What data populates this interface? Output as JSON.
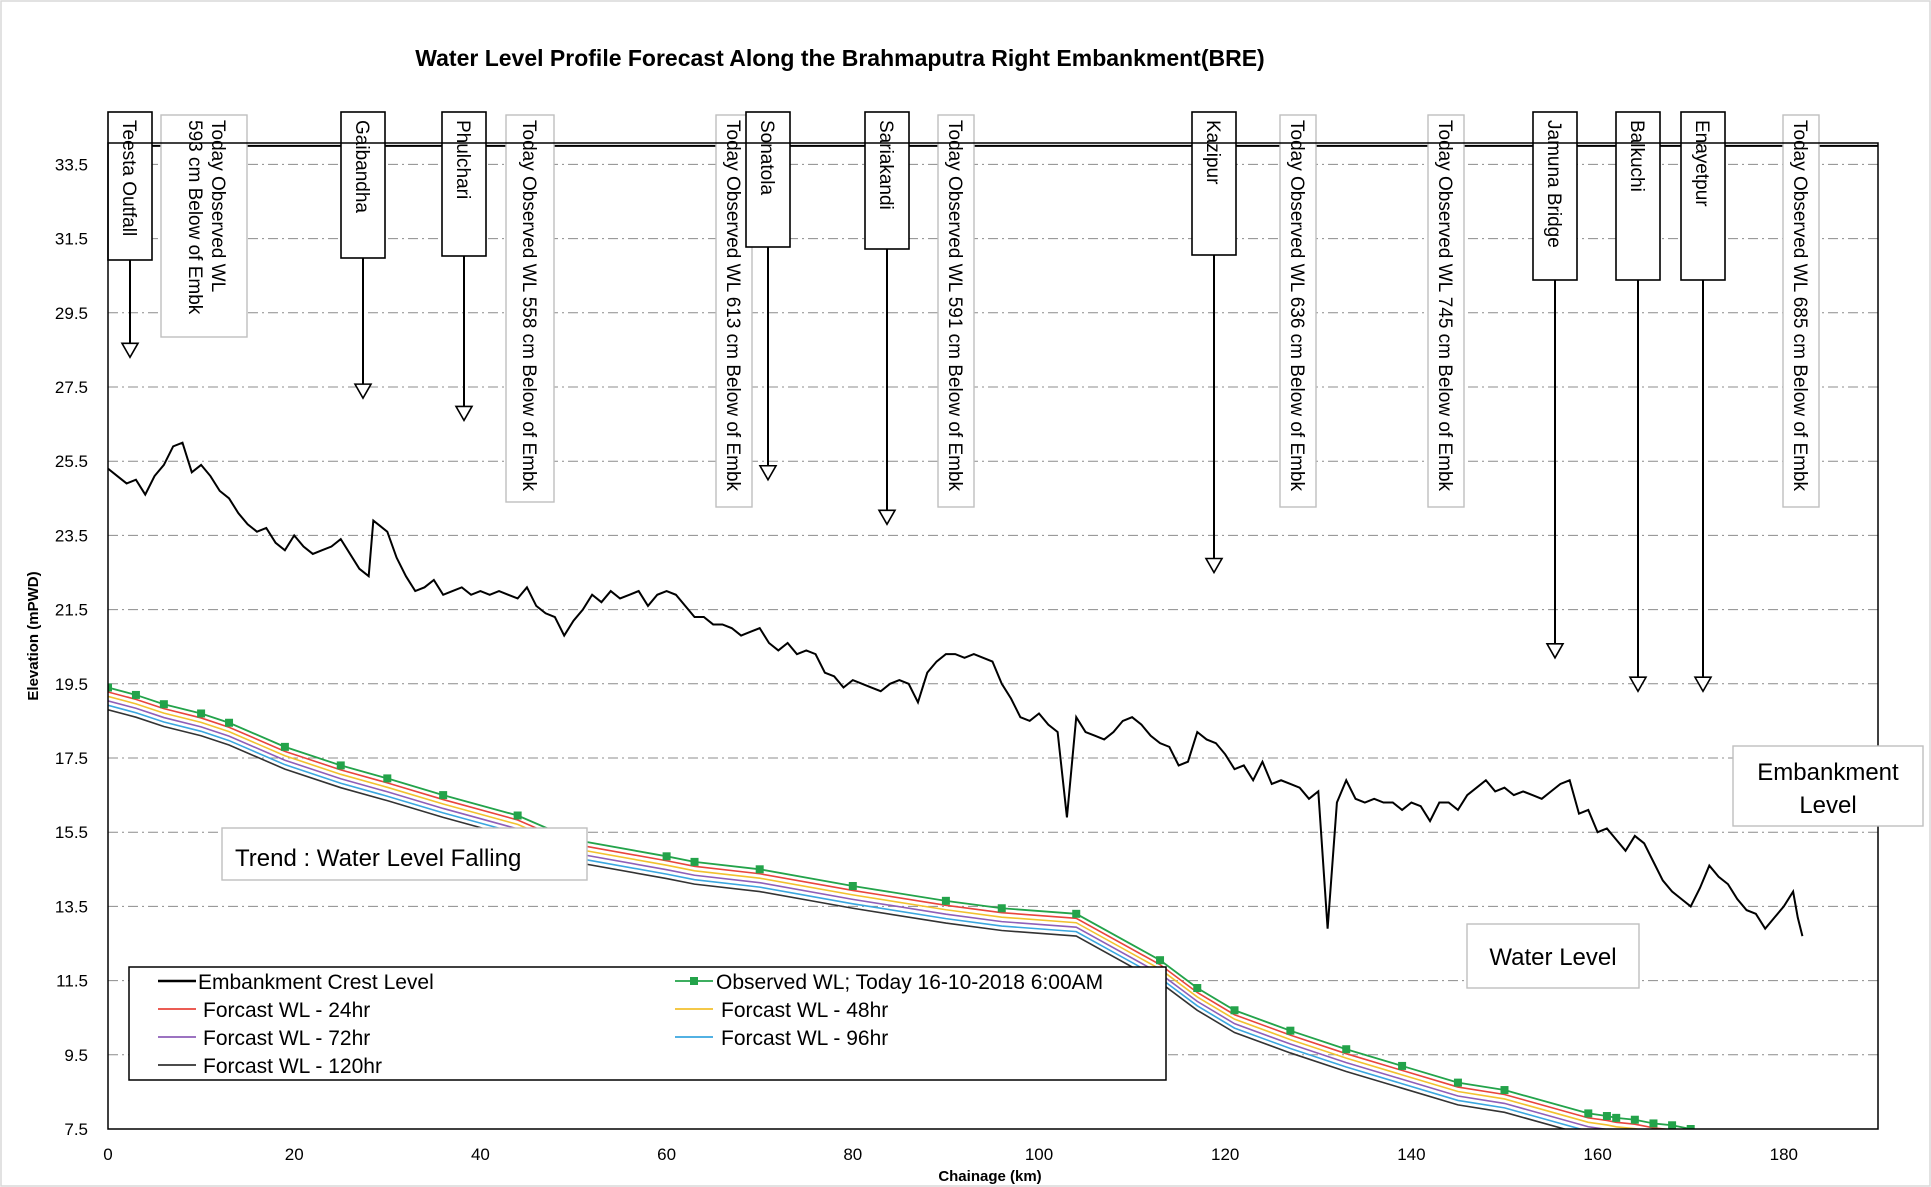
{
  "chart_data": {
    "type": "line",
    "title": "Water Level Profile Forecast Along the Brahmaputra Right Embankment(BRE)",
    "xlabel": "Chainage (km)",
    "ylabel": "Elevation (mPWD)",
    "xlim": [
      0,
      190
    ],
    "ylim": [
      7.5,
      35
    ],
    "xticks": [
      "0",
      "20",
      "40",
      "60",
      "80",
      "100",
      "120",
      "140",
      "160",
      "180"
    ],
    "yticks": [
      "7.5",
      "9.5",
      "11.5",
      "13.5",
      "15.5",
      "17.5",
      "19.5",
      "21.5",
      "23.5",
      "25.5",
      "27.5",
      "29.5",
      "31.5",
      "33.5"
    ],
    "grid": true,
    "legend_position": "bottom-left",
    "embankment_crest": [
      [
        0,
        25.3
      ],
      [
        1,
        25.1
      ],
      [
        2,
        24.9
      ],
      [
        3,
        25.0
      ],
      [
        4,
        24.6
      ],
      [
        5,
        25.1
      ],
      [
        6,
        25.4
      ],
      [
        7,
        25.9
      ],
      [
        8,
        26.0
      ],
      [
        9,
        25.2
      ],
      [
        10,
        25.4
      ],
      [
        11,
        25.1
      ],
      [
        12,
        24.7
      ],
      [
        13,
        24.5
      ],
      [
        14,
        24.1
      ],
      [
        15,
        23.8
      ],
      [
        16,
        23.6
      ],
      [
        17,
        23.7
      ],
      [
        18,
        23.3
      ],
      [
        19,
        23.1
      ],
      [
        20,
        23.5
      ],
      [
        21,
        23.2
      ],
      [
        22,
        23.0
      ],
      [
        23,
        23.1
      ],
      [
        24,
        23.2
      ],
      [
        25,
        23.4
      ],
      [
        27,
        22.6
      ],
      [
        28,
        22.4
      ],
      [
        28.5,
        23.9
      ],
      [
        30,
        23.6
      ],
      [
        31,
        22.9
      ],
      [
        32,
        22.4
      ],
      [
        33,
        22.0
      ],
      [
        34,
        22.1
      ],
      [
        35,
        22.3
      ],
      [
        36,
        21.9
      ],
      [
        37,
        22.0
      ],
      [
        38,
        22.1
      ],
      [
        39,
        21.9
      ],
      [
        40,
        22.0
      ],
      [
        41,
        21.9
      ],
      [
        42,
        22.0
      ],
      [
        43,
        21.9
      ],
      [
        44,
        21.8
      ],
      [
        45,
        22.1
      ],
      [
        46,
        21.6
      ],
      [
        47,
        21.4
      ],
      [
        48,
        21.3
      ],
      [
        49,
        20.8
      ],
      [
        50,
        21.2
      ],
      [
        51,
        21.5
      ],
      [
        52,
        21.9
      ],
      [
        53,
        21.7
      ],
      [
        54,
        22.0
      ],
      [
        55,
        21.8
      ],
      [
        56,
        21.9
      ],
      [
        57,
        22.0
      ],
      [
        58,
        21.6
      ],
      [
        59,
        21.9
      ],
      [
        60,
        22.0
      ],
      [
        61,
        21.9
      ],
      [
        62,
        21.6
      ],
      [
        63,
        21.3
      ],
      [
        64,
        21.3
      ],
      [
        65,
        21.1
      ],
      [
        66,
        21.1
      ],
      [
        67,
        21.0
      ],
      [
        68,
        20.8
      ],
      [
        69,
        20.9
      ],
      [
        70,
        21.0
      ],
      [
        71,
        20.6
      ],
      [
        72,
        20.4
      ],
      [
        73,
        20.6
      ],
      [
        74,
        20.3
      ],
      [
        75,
        20.4
      ],
      [
        76,
        20.3
      ],
      [
        77,
        19.8
      ],
      [
        78,
        19.7
      ],
      [
        79,
        19.4
      ],
      [
        80,
        19.6
      ],
      [
        81,
        19.5
      ],
      [
        82,
        19.4
      ],
      [
        83,
        19.3
      ],
      [
        84,
        19.5
      ],
      [
        85,
        19.6
      ],
      [
        86,
        19.5
      ],
      [
        87,
        19.0
      ],
      [
        88,
        19.8
      ],
      [
        89,
        20.1
      ],
      [
        90,
        20.3
      ],
      [
        91,
        20.3
      ],
      [
        92,
        20.2
      ],
      [
        93,
        20.3
      ],
      [
        94,
        20.2
      ],
      [
        95,
        20.1
      ],
      [
        96,
        19.5
      ],
      [
        97,
        19.1
      ],
      [
        98,
        18.6
      ],
      [
        99,
        18.5
      ],
      [
        100,
        18.7
      ],
      [
        101,
        18.4
      ],
      [
        102,
        18.2
      ],
      [
        103,
        15.9
      ],
      [
        104,
        18.6
      ],
      [
        105,
        18.2
      ],
      [
        106,
        18.1
      ],
      [
        107,
        18.0
      ],
      [
        108,
        18.2
      ],
      [
        109,
        18.5
      ],
      [
        110,
        18.6
      ],
      [
        111,
        18.4
      ],
      [
        112,
        18.1
      ],
      [
        113,
        17.9
      ],
      [
        114,
        17.8
      ],
      [
        115,
        17.3
      ],
      [
        116,
        17.4
      ],
      [
        117,
        18.2
      ],
      [
        118,
        18.0
      ],
      [
        119,
        17.9
      ],
      [
        120,
        17.6
      ],
      [
        121,
        17.2
      ],
      [
        122,
        17.3
      ],
      [
        123,
        16.9
      ],
      [
        124,
        17.4
      ],
      [
        125,
        16.8
      ],
      [
        126,
        16.9
      ],
      [
        127,
        16.8
      ],
      [
        128,
        16.7
      ],
      [
        129,
        16.4
      ],
      [
        130,
        16.6
      ],
      [
        131,
        12.9
      ],
      [
        132,
        16.3
      ],
      [
        133,
        16.9
      ],
      [
        134,
        16.4
      ],
      [
        135,
        16.3
      ],
      [
        136,
        16.4
      ],
      [
        137,
        16.3
      ],
      [
        138,
        16.3
      ],
      [
        139,
        16.1
      ],
      [
        140,
        16.3
      ],
      [
        141,
        16.2
      ],
      [
        142,
        15.8
      ],
      [
        143,
        16.3
      ],
      [
        144,
        16.3
      ],
      [
        145,
        16.1
      ],
      [
        146,
        16.5
      ],
      [
        147,
        16.7
      ],
      [
        148,
        16.9
      ],
      [
        149,
        16.6
      ],
      [
        150,
        16.7
      ],
      [
        151,
        16.5
      ],
      [
        152,
        16.6
      ],
      [
        153,
        16.5
      ],
      [
        154,
        16.4
      ],
      [
        155,
        16.6
      ],
      [
        156,
        16.8
      ],
      [
        157,
        16.9
      ],
      [
        158,
        16.0
      ],
      [
        159,
        16.1
      ],
      [
        160,
        15.5
      ],
      [
        161,
        15.6
      ],
      [
        162,
        15.3
      ],
      [
        163,
        15.0
      ],
      [
        164,
        15.4
      ],
      [
        165,
        15.2
      ],
      [
        166,
        14.7
      ],
      [
        167,
        14.2
      ],
      [
        168,
        13.9
      ],
      [
        169,
        13.7
      ],
      [
        170,
        13.5
      ],
      [
        171,
        14.0
      ],
      [
        172,
        14.6
      ],
      [
        173,
        14.3
      ],
      [
        174,
        14.1
      ],
      [
        175,
        13.7
      ],
      [
        176,
        13.4
      ],
      [
        177,
        13.3
      ],
      [
        178,
        12.9
      ],
      [
        179,
        13.2
      ],
      [
        180,
        13.5
      ],
      [
        181,
        13.9
      ],
      [
        181.5,
        13.2
      ],
      [
        182,
        12.7
      ]
    ],
    "series": [
      {
        "name": "Observed WL; Today 16-10-2018 6:00AM",
        "color": "#23a34a",
        "marker": "square",
        "points": [
          [
            0,
            19.4
          ],
          [
            3,
            19.2
          ],
          [
            6,
            18.95
          ],
          [
            10,
            18.7
          ],
          [
            13,
            18.45
          ],
          [
            19,
            17.8
          ],
          [
            25,
            17.3
          ],
          [
            30,
            16.95
          ],
          [
            36,
            16.5
          ],
          [
            44,
            15.95
          ],
          [
            50,
            15.3
          ],
          [
            60,
            14.85
          ],
          [
            63,
            14.7
          ],
          [
            70,
            14.5
          ],
          [
            80,
            14.05
          ],
          [
            90,
            13.65
          ],
          [
            96,
            13.45
          ],
          [
            104,
            13.3
          ],
          [
            113,
            12.05
          ],
          [
            117,
            11.3
          ],
          [
            121,
            10.7
          ],
          [
            127,
            10.15
          ],
          [
            133,
            9.65
          ],
          [
            139,
            9.2
          ],
          [
            145,
            8.75
          ],
          [
            150,
            8.55
          ],
          [
            159,
            7.92
          ],
          [
            161,
            7.85
          ],
          [
            162,
            7.8
          ],
          [
            164,
            7.75
          ],
          [
            166,
            7.65
          ],
          [
            168,
            7.6
          ],
          [
            170,
            7.5
          ]
        ]
      },
      {
        "name": "Forcast WL - 24hr",
        "color": "#e8453c",
        "offset": -0.12
      },
      {
        "name": "Forcast WL - 48hr",
        "color": "#f2c12e",
        "offset": -0.24
      },
      {
        "name": "Forcast WL - 72hr",
        "color": "#8e5fb8",
        "offset": -0.36
      },
      {
        "name": "Forcast WL - 96hr",
        "color": "#3aa6df",
        "offset": -0.48
      },
      {
        "name": "Forcast WL - 120hr",
        "color": "#333333",
        "offset": -0.6
      }
    ],
    "embankment_series_name": "Embankment Crest Level",
    "stations": [
      {
        "name": "Teesta Outfall",
        "x": 2.0,
        "tip": 28.3
      },
      {
        "name": "Gaibandha",
        "x": 27.0,
        "tip": 27.2
      },
      {
        "name": "Phulchari",
        "x": 38.0,
        "tip": 26.6
      },
      {
        "name": "Sonatola",
        "x": 70.5,
        "tip": 25.0
      },
      {
        "name": "Sariakandi",
        "x": 83.5,
        "tip": 23.8
      },
      {
        "name": "Kazipur",
        "x": 118.5,
        "tip": 22.5
      },
      {
        "name": "Jamuna Bridge",
        "x": 155.5,
        "tip": 20.2
      },
      {
        "name": "Balkuchi",
        "x": 164.0,
        "tip": 19.3
      },
      {
        "name": "Enayetpur",
        "x": 171.0,
        "tip": 19.3
      }
    ],
    "observations": [
      "Today Observed WL 593 cm Below of Embk",
      "Today Observed WL 558 cm Below of Embk",
      "Today Observed WL 613 cm Below of Embk",
      "Today Observed WL 591 cm Below of Embk",
      "Today Observed WL 636 cm Below of Embk",
      "Today Observed WL 745 cm Below of Embk",
      "Today Observed WL 685 cm Below of Embk"
    ],
    "annotations": {
      "trend": "Trend : Water Level  Falling",
      "embankment_line1": "Embankment",
      "embankment_line2": "Level",
      "water_level": "Water Level"
    }
  }
}
